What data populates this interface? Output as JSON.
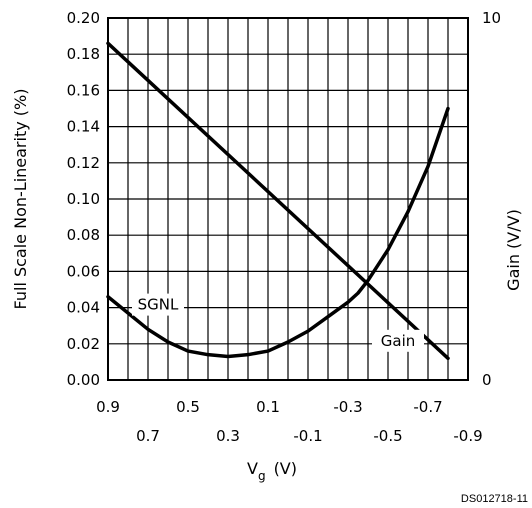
{
  "chart_data": {
    "type": "line",
    "ylabel": "Full Scale Non-Linearity (%)",
    "y2label": "Gain (V/V)",
    "xlabel_main": "V",
    "xlabel_sub": "g",
    "xlabel_unit": "(V)",
    "ylim": [
      0,
      0.2
    ],
    "y_ticks": [
      "0.00",
      "0.02",
      "0.04",
      "0.06",
      "0.08",
      "0.10",
      "0.12",
      "0.14",
      "0.16",
      "0.18",
      "0.20"
    ],
    "y2lim": [
      0,
      10
    ],
    "y2_ticks": [
      "0",
      "10"
    ],
    "xlim": [
      0.9,
      -0.9
    ],
    "x_ticks_top": [
      "0.9",
      "0.5",
      "0.1",
      "-0.3",
      "-0.7"
    ],
    "x_ticks_bottom": [
      "0.7",
      "0.3",
      "-0.1",
      "-0.5",
      "-0.9"
    ],
    "grid": true,
    "series": [
      {
        "name": "SGNL",
        "axis": "left",
        "x": [
          0.9,
          0.8,
          0.7,
          0.6,
          0.5,
          0.4,
          0.3,
          0.2,
          0.1,
          0.0,
          -0.1,
          -0.2,
          -0.3,
          -0.35,
          -0.4,
          -0.5,
          -0.6,
          -0.7,
          -0.8
        ],
        "y": [
          0.046,
          0.037,
          0.028,
          0.021,
          0.016,
          0.014,
          0.013,
          0.014,
          0.016,
          0.021,
          0.027,
          0.035,
          0.043,
          0.048,
          0.055,
          0.072,
          0.093,
          0.118,
          0.15
        ]
      },
      {
        "name": "Gain",
        "axis": "right",
        "x": [
          0.9,
          -0.8
        ],
        "y": [
          9.3,
          0.6
        ]
      }
    ],
    "code": "DS012718-11"
  }
}
